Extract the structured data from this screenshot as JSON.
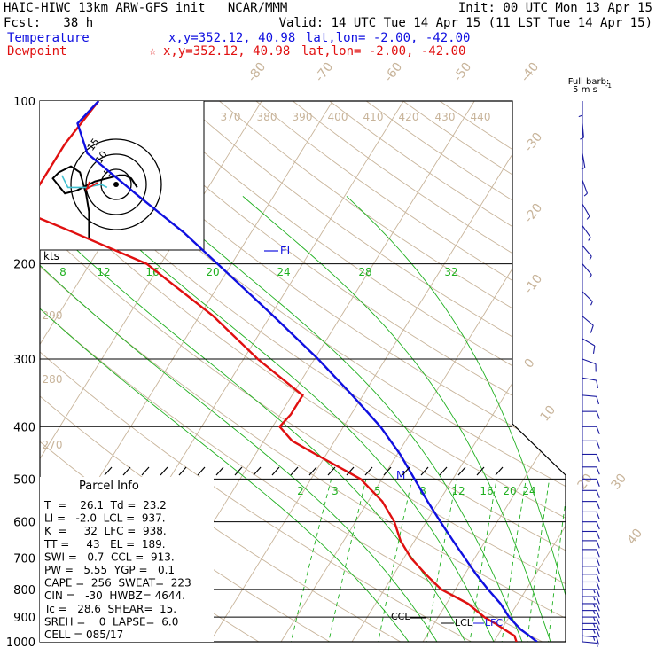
{
  "header": {
    "line1_left": "HAIC-HIWC 13km ARW-GFS init   NCAR/MMM",
    "line1_right": "Init: 00 UTC Mon 13 Apr 15",
    "line2_left": "Fcst:   38 h",
    "line2_right": "Valid: 14 UTC Tue 14 Apr 15 (11 LST Tue 14 Apr 15)",
    "temp_label": "Temperature",
    "temp_xy": "x,y=352.12, 40.98",
    "temp_latlon": "lat,lon= -2.00, -42.00",
    "dew_label": "Dewpoint",
    "dew_marker": "☆",
    "dew_xy": "x,y=352.12, 40.98",
    "dew_latlon": "lat,lon= -2.00, -42.00",
    "barb_title": "Full barb:",
    "barb_units": "5 m s",
    "barb_exp": "-1"
  },
  "colors": {
    "temperature": "#1010e0",
    "dewpoint": "#e01010",
    "isotherm": "#c8b49a",
    "adiabat": "#c8b49a",
    "moist_adiabat": "#20b020",
    "mixing_ratio": "#20b020",
    "pressure_line": "#000000",
    "hodo_wind": "#40c0d0"
  },
  "chart_data": {
    "type": "skew-t log-p sounding",
    "pressure_levels": [
      "100",
      "200",
      "300",
      "400",
      "500",
      "600",
      "700",
      "800",
      "900",
      "1000"
    ],
    "isotherm_labels": [
      "-80",
      "-70",
      "-60",
      "-50",
      "-40",
      "-30",
      "-20",
      "-10",
      "0",
      "10",
      "20",
      "30",
      "40"
    ],
    "theta_labels": [
      "370",
      "380",
      "390",
      "400",
      "410",
      "420",
      "430",
      "440",
      "290",
      "280",
      "270"
    ],
    "moist_adiabat_labels": [
      "8",
      "12",
      "16",
      "20",
      "24",
      "28",
      "32"
    ],
    "mixing_ratio_labels": [
      "2",
      "3",
      "5",
      "8",
      "12",
      "16",
      "20",
      "24"
    ],
    "temperature_profile": [
      {
        "p": 1000,
        "t": 26.1
      },
      {
        "p": 975,
        "t": 24.5
      },
      {
        "p": 950,
        "t": 22.8
      },
      {
        "p": 925,
        "t": 21.4
      },
      {
        "p": 900,
        "t": 20.0
      },
      {
        "p": 850,
        "t": 17.6
      },
      {
        "p": 800,
        "t": 14.6
      },
      {
        "p": 750,
        "t": 11.6
      },
      {
        "p": 700,
        "t": 8.6
      },
      {
        "p": 650,
        "t": 5.4
      },
      {
        "p": 600,
        "t": 2.0
      },
      {
        "p": 550,
        "t": -1.6
      },
      {
        "p": 500,
        "t": -5.4
      },
      {
        "p": 450,
        "t": -9.6
      },
      {
        "p": 400,
        "t": -14.8
      },
      {
        "p": 350,
        "t": -21.5
      },
      {
        "p": 300,
        "t": -29.5
      },
      {
        "p": 250,
        "t": -39.5
      },
      {
        "p": 200,
        "t": -52.0
      },
      {
        "p": 175,
        "t": -59.5
      },
      {
        "p": 150,
        "t": -69.0
      },
      {
        "p": 125,
        "t": -80.0
      },
      {
        "p": 110,
        "t": -84.0
      },
      {
        "p": 100,
        "t": -83.0
      }
    ],
    "dewpoint_profile": [
      {
        "p": 1000,
        "t": 23.2
      },
      {
        "p": 975,
        "t": 22.4
      },
      {
        "p": 950,
        "t": 20.5
      },
      {
        "p": 925,
        "t": 18.6
      },
      {
        "p": 900,
        "t": 16.5
      },
      {
        "p": 850,
        "t": 13.0
      },
      {
        "p": 800,
        "t": 8.0
      },
      {
        "p": 750,
        "t": 4.5
      },
      {
        "p": 700,
        "t": 1.0
      },
      {
        "p": 650,
        "t": -2.0
      },
      {
        "p": 600,
        "t": -4.5
      },
      {
        "p": 550,
        "t": -8.0
      },
      {
        "p": 500,
        "t": -13.0
      },
      {
        "p": 450,
        "t": -21.5
      },
      {
        "p": 425,
        "t": -26.0
      },
      {
        "p": 400,
        "t": -29.0
      },
      {
        "p": 380,
        "t": -28.5
      },
      {
        "p": 350,
        "t": -28.5
      },
      {
        "p": 300,
        "t": -38.0
      },
      {
        "p": 250,
        "t": -48.0
      },
      {
        "p": 200,
        "t": -62.0
      },
      {
        "p": 175,
        "t": -75.0
      },
      {
        "p": 160,
        "t": -84.0
      },
      {
        "p": 140,
        "t": -84.0
      },
      {
        "p": 120,
        "t": -84.0
      },
      {
        "p": 100,
        "t": -83.0
      }
    ],
    "annotations": [
      "EL",
      "M",
      "CCL",
      "LCL",
      "LFC"
    ],
    "hodograph": {
      "rings": [
        "5",
        "10",
        "15"
      ],
      "units": "kts",
      "trace_points": [
        [
          7,
          -1
        ],
        [
          5,
          2
        ],
        [
          3,
          3
        ],
        [
          1,
          3
        ],
        [
          -3,
          2
        ],
        [
          -7,
          1
        ],
        [
          -13,
          -2
        ],
        [
          -17,
          -3
        ],
        [
          -21,
          2
        ],
        [
          -19,
          4
        ],
        [
          -15,
          6
        ],
        [
          -12,
          4
        ],
        [
          -10,
          -3
        ],
        [
          -9,
          -9
        ],
        [
          -9,
          -14
        ],
        [
          -9,
          -18
        ]
      ],
      "low_level_segment": [
        [
          -18,
          3
        ],
        [
          -16,
          -1
        ],
        [
          -10,
          -1
        ],
        [
          -5,
          0
        ],
        [
          -3,
          -1
        ]
      ]
    },
    "wind_barbs": [
      {
        "p": 1000,
        "speed_ms": 4,
        "dir_deg": 95
      },
      {
        "p": 975,
        "speed_ms": 6,
        "dir_deg": 95
      },
      {
        "p": 950,
        "speed_ms": 7,
        "dir_deg": 90
      },
      {
        "p": 925,
        "speed_ms": 7,
        "dir_deg": 90
      },
      {
        "p": 900,
        "speed_ms": 7,
        "dir_deg": 90
      },
      {
        "p": 875,
        "speed_ms": 6,
        "dir_deg": 90
      },
      {
        "p": 850,
        "speed_ms": 6,
        "dir_deg": 90
      },
      {
        "p": 825,
        "speed_ms": 6,
        "dir_deg": 90
      },
      {
        "p": 800,
        "speed_ms": 6,
        "dir_deg": 90
      },
      {
        "p": 775,
        "speed_ms": 5,
        "dir_deg": 90
      },
      {
        "p": 750,
        "speed_ms": 5,
        "dir_deg": 90
      },
      {
        "p": 725,
        "speed_ms": 5,
        "dir_deg": 90
      },
      {
        "p": 700,
        "speed_ms": 5,
        "dir_deg": 90
      },
      {
        "p": 675,
        "speed_ms": 5,
        "dir_deg": 90
      },
      {
        "p": 650,
        "speed_ms": 5,
        "dir_deg": 90
      },
      {
        "p": 625,
        "speed_ms": 5,
        "dir_deg": 90
      },
      {
        "p": 600,
        "speed_ms": 5,
        "dir_deg": 90
      },
      {
        "p": 575,
        "speed_ms": 5,
        "dir_deg": 90
      },
      {
        "p": 550,
        "speed_ms": 5,
        "dir_deg": 90
      },
      {
        "p": 525,
        "speed_ms": 5,
        "dir_deg": 90
      },
      {
        "p": 500,
        "speed_ms": 5,
        "dir_deg": 90
      },
      {
        "p": 475,
        "speed_ms": 5,
        "dir_deg": 90
      },
      {
        "p": 450,
        "speed_ms": 5,
        "dir_deg": 90
      },
      {
        "p": 425,
        "speed_ms": 5,
        "dir_deg": 90
      },
      {
        "p": 400,
        "speed_ms": 5,
        "dir_deg": 90
      },
      {
        "p": 375,
        "speed_ms": 5,
        "dir_deg": 90
      },
      {
        "p": 350,
        "speed_ms": 5,
        "dir_deg": 95
      },
      {
        "p": 325,
        "speed_ms": 5,
        "dir_deg": 100
      },
      {
        "p": 300,
        "speed_ms": 5,
        "dir_deg": 110
      },
      {
        "p": 275,
        "speed_ms": 5,
        "dir_deg": 120
      },
      {
        "p": 250,
        "speed_ms": 5,
        "dir_deg": 130
      },
      {
        "p": 225,
        "speed_ms": 4,
        "dir_deg": 135
      },
      {
        "p": 200,
        "speed_ms": 4,
        "dir_deg": 140
      },
      {
        "p": 185,
        "speed_ms": 4,
        "dir_deg": 140
      },
      {
        "p": 170,
        "speed_ms": 3,
        "dir_deg": 145
      },
      {
        "p": 155,
        "speed_ms": 3,
        "dir_deg": 150
      },
      {
        "p": 140,
        "speed_ms": 3,
        "dir_deg": 160
      },
      {
        "p": 125,
        "speed_ms": 2,
        "dir_deg": 170
      },
      {
        "p": 110,
        "speed_ms": 2,
        "dir_deg": 175
      },
      {
        "p": 100,
        "speed_ms": 2,
        "dir_deg": 180
      }
    ]
  },
  "parcel_info": {
    "title": "Parcel Info",
    "rows": [
      "T  =    26.1  Td =  23.2",
      "LI =   -2.0  LCL =  937.",
      "K  =     32  LFC =  938.",
      "TT =     43   EL =  189.",
      "SWI =   0.7  CCL =  913.",
      "PW =   5.55  YGP =   0.1",
      "CAPE =  256  SWEAT=  223",
      "CIN =   -30  HWBZ= 4644.",
      "Tc =   28.6  SHEAR=  15.",
      "SREH =    0  LAPSE=  6.0",
      "CELL = 085/17"
    ]
  }
}
